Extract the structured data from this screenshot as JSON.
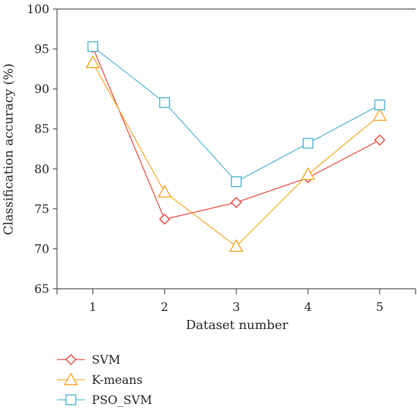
{
  "chart_data": {
    "type": "line",
    "xlabel": "Dataset number",
    "ylabel": "Classification accuracy (%)",
    "x": [
      1,
      2,
      3,
      4,
      5
    ],
    "xlim": [
      0.5,
      5.5
    ],
    "ylim": [
      65,
      100
    ],
    "yticks": [
      65,
      70,
      75,
      80,
      85,
      90,
      95,
      100
    ],
    "legend_position": "bottom-left",
    "series": [
      {
        "name": "SVM",
        "marker": "diamond",
        "color": "#e8443a",
        "values": [
          95.2,
          73.7,
          75.8,
          78.9,
          83.6
        ]
      },
      {
        "name": "K-means",
        "marker": "triangle",
        "color": "#f5a623",
        "values": [
          93.3,
          77.1,
          70.3,
          79.3,
          86.7
        ]
      },
      {
        "name": "PSO_SVM",
        "marker": "square",
        "color": "#4fb3d0",
        "values": [
          95.3,
          88.3,
          78.4,
          83.2,
          88.0
        ]
      }
    ]
  }
}
